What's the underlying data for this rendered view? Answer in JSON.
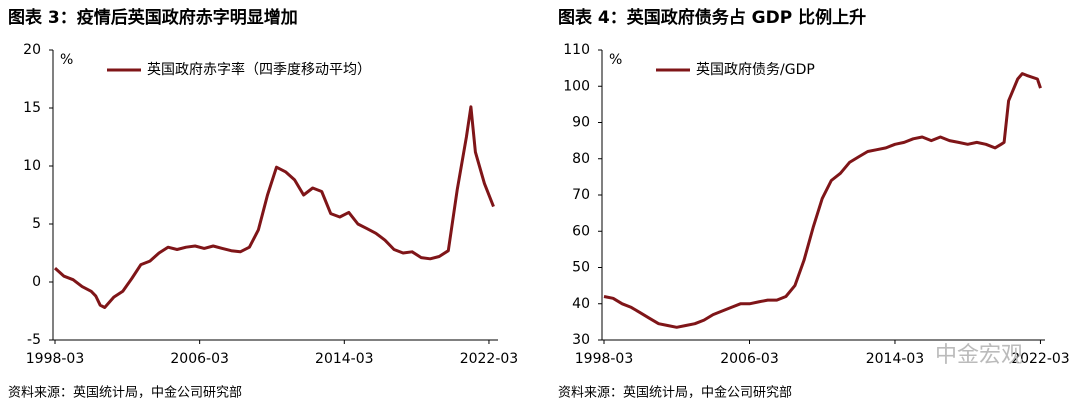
{
  "chart_data": [
    {
      "type": "line",
      "title": "图表 3：疫情后英国政府赤字明显增加",
      "y_label": "%",
      "source": "资料来源：英国统计局，中金公司研究部",
      "xlim": [
        "1998-03",
        "2022-09"
      ],
      "xticks": [
        "1998-03",
        "2006-03",
        "2014-03",
        "2022-03"
      ],
      "ylim": [
        -5,
        20
      ],
      "yticks": [
        -5,
        0,
        5,
        10,
        15,
        20
      ],
      "grid": false,
      "legend": "top-left",
      "x": [
        "1998-03",
        "1998-09",
        "1999-03",
        "1999-09",
        "2000-03",
        "2000-06",
        "2000-09",
        "2000-12",
        "2001-06",
        "2001-12",
        "2002-06",
        "2002-12",
        "2003-06",
        "2003-12",
        "2004-06",
        "2004-12",
        "2005-06",
        "2005-12",
        "2006-06",
        "2006-12",
        "2007-06",
        "2007-12",
        "2008-06",
        "2008-12",
        "2009-06",
        "2009-12",
        "2010-06",
        "2010-12",
        "2011-06",
        "2011-12",
        "2012-06",
        "2012-12",
        "2013-06",
        "2013-12",
        "2014-06",
        "2014-12",
        "2015-06",
        "2015-12",
        "2016-06",
        "2016-12",
        "2017-06",
        "2017-12",
        "2018-06",
        "2018-12",
        "2019-06",
        "2019-12",
        "2020-06",
        "2020-12",
        "2021-03",
        "2021-06",
        "2021-12",
        "2022-06"
      ],
      "series": [
        {
          "name": "英国政府赤字率（四季度移动平均）",
          "color": "#7f1518",
          "values": [
            1.2,
            0.5,
            0.2,
            -0.4,
            -0.8,
            -1.2,
            -2.0,
            -2.2,
            -1.3,
            -0.8,
            0.3,
            1.5,
            1.8,
            2.5,
            3.0,
            2.8,
            3.0,
            3.1,
            2.9,
            3.1,
            2.9,
            2.7,
            2.6,
            3.0,
            4.5,
            7.5,
            9.9,
            9.5,
            8.8,
            7.5,
            8.1,
            7.8,
            5.9,
            5.6,
            6.0,
            5.0,
            4.6,
            4.2,
            3.6,
            2.8,
            2.5,
            2.6,
            2.1,
            2.0,
            2.2,
            2.7,
            8.0,
            12.5,
            15.1,
            11.2,
            8.5,
            6.5
          ]
        }
      ]
    },
    {
      "type": "line",
      "title": "图表 4：英国政府债务占 GDP 比例上升",
      "y_label": "%",
      "source": "资料来源：英国统计局，中金公司研究部",
      "watermark": "中金宏观",
      "xlim": [
        "1998-03",
        "2022-06"
      ],
      "xticks": [
        "1998-03",
        "2006-03",
        "2014-03",
        "2022-03"
      ],
      "ylim": [
        30,
        110
      ],
      "yticks": [
        30,
        40,
        50,
        60,
        70,
        80,
        90,
        100,
        110
      ],
      "grid": false,
      "legend": "top-left",
      "x": [
        "1998-03",
        "1998-09",
        "1999-03",
        "1999-09",
        "2000-03",
        "2000-09",
        "2001-03",
        "2001-09",
        "2002-03",
        "2002-09",
        "2003-03",
        "2003-09",
        "2004-03",
        "2004-09",
        "2005-03",
        "2005-09",
        "2006-03",
        "2006-09",
        "2007-03",
        "2007-09",
        "2008-03",
        "2008-09",
        "2009-03",
        "2009-09",
        "2010-03",
        "2010-09",
        "2011-03",
        "2011-09",
        "2012-03",
        "2012-09",
        "2013-03",
        "2013-09",
        "2014-03",
        "2014-09",
        "2015-03",
        "2015-09",
        "2016-03",
        "2016-09",
        "2017-03",
        "2017-09",
        "2018-03",
        "2018-09",
        "2019-03",
        "2019-09",
        "2020-01",
        "2020-03",
        "2020-06",
        "2020-12",
        "2021-03",
        "2021-06",
        "2022-01",
        "2022-03"
      ],
      "series": [
        {
          "name": "英国政府债务/GDP",
          "color": "#7f1518",
          "values": [
            42,
            41.5,
            40,
            39,
            37.5,
            36,
            34.5,
            34,
            33.5,
            34,
            34.5,
            35.5,
            37,
            38,
            39,
            40,
            40,
            40.5,
            41,
            41,
            42,
            45,
            52,
            61,
            69,
            74,
            76,
            79,
            80.5,
            82,
            82.5,
            83,
            84,
            84.5,
            85.5,
            86,
            85,
            86,
            85,
            84.5,
            84,
            84.5,
            84,
            83,
            84,
            84.5,
            96,
            102,
            103.5,
            103,
            102,
            99.5
          ]
        }
      ]
    }
  ]
}
